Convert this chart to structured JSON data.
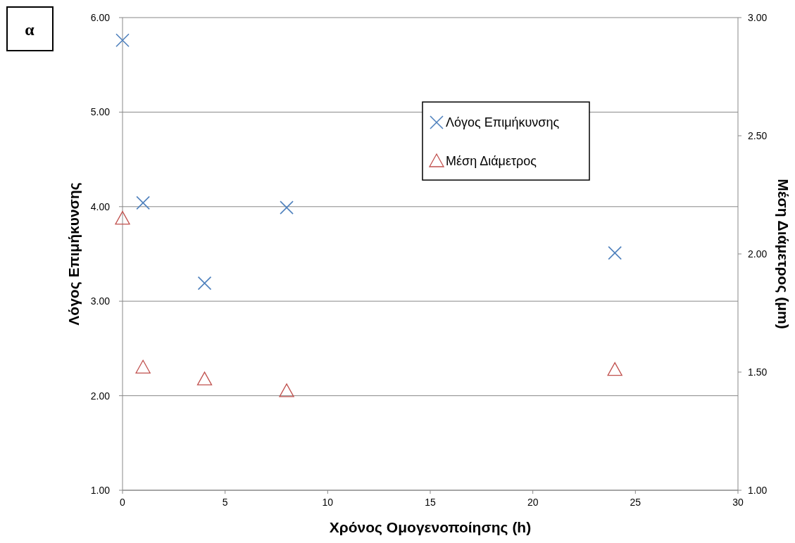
{
  "chart_data": {
    "type": "scatter",
    "xlabel": "Χρόνος Ομογενοποίησης (h)",
    "ylabel": "Λόγος Επιμήκυνσης",
    "y2label": "Μέση Διάμετρος (μm)",
    "annotations": [
      "α"
    ],
    "x": [
      0,
      1,
      4,
      8,
      24
    ],
    "series": [
      {
        "name": "Λόγος Επιμήκυνσης",
        "color": "#4f81bd",
        "marker": "cross",
        "values": [
          5.76,
          4.04,
          3.19,
          3.99,
          3.51
        ]
      },
      {
        "name": "Μέση Διάμετρος",
        "color": "#c0504d",
        "marker": "triangle",
        "axis": "y2",
        "values": [
          2.15,
          1.52,
          1.47,
          1.42,
          1.51
        ]
      }
    ],
    "xlim": [
      0,
      30
    ],
    "xticks": [
      0,
      5,
      10,
      15,
      20,
      25,
      30
    ],
    "ylim": [
      1,
      6
    ],
    "yticks": [
      {
        "value": 1,
        "label": "1.00"
      },
      {
        "value": 2,
        "label": "2.00"
      },
      {
        "value": 3,
        "label": "3.00"
      },
      {
        "value": 4,
        "label": "4.00"
      },
      {
        "value": 5,
        "label": "5.00"
      },
      {
        "value": 6,
        "label": "6.00"
      }
    ],
    "y2lim": [
      1,
      3
    ],
    "y2ticks": [
      {
        "value": 1,
        "label": "1.00"
      },
      {
        "value": 1.5,
        "label": "1.50"
      },
      {
        "value": 2,
        "label": "2.00"
      },
      {
        "value": 2.5,
        "label": "2.50"
      },
      {
        "value": 3,
        "label": "3.00"
      }
    ],
    "grid": "y",
    "legend": "top right"
  }
}
